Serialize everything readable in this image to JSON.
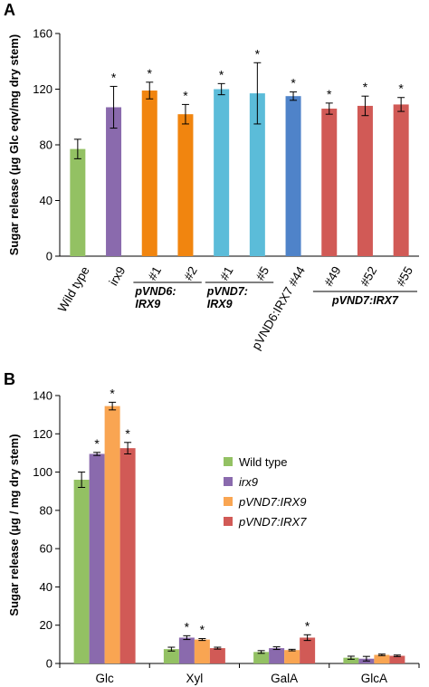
{
  "chart_data": [
    {
      "panel": "A",
      "type": "bar",
      "ylabel": "Sugar release (µg Glc eqv/mg dry stem)",
      "ylim": [
        0,
        160
      ],
      "yticks": [
        0,
        40,
        80,
        120,
        160
      ],
      "categories": [
        "Wild type",
        "irx9",
        "#1",
        "#2",
        "#1",
        "#5",
        "pVND6:IRX7 #44",
        "#49",
        "#52",
        "#55"
      ],
      "values": [
        77,
        107,
        119,
        102,
        120,
        117,
        115,
        106,
        108,
        109
      ],
      "errors": [
        7,
        15,
        6,
        7,
        4,
        22,
        3,
        4,
        7,
        5
      ],
      "significant": [
        "",
        "*",
        "*",
        "*",
        "*",
        "*",
        "*",
        "*",
        "*",
        "*"
      ],
      "colors": [
        "#93c163",
        "#8a6aad",
        "#f1850f",
        "#f1850f",
        "#5bbcd9",
        "#5bbcd9",
        "#4f83c9",
        "#d15a56",
        "#d15a56",
        "#d15a56"
      ],
      "group_labels": [
        {
          "text": "pVND6:\nIRX9",
          "from": 2,
          "to": 3
        },
        {
          "text": "pVND7:\nIRX9",
          "from": 4,
          "to": 5
        },
        {
          "text": "pVND7:IRX7",
          "from": 7,
          "to": 9
        }
      ]
    },
    {
      "panel": "B",
      "type": "bar",
      "ylabel": "Sugar release (µg / mg dry stem)",
      "ylim": [
        0,
        140
      ],
      "yticks": [
        0,
        20,
        40,
        60,
        80,
        100,
        120,
        140
      ],
      "categories": [
        "Glc",
        "Xyl",
        "GalA",
        "GlcA"
      ],
      "series": [
        {
          "name": "Wild type",
          "color": "#93c163",
          "values": [
            96,
            7.5,
            6,
            3
          ],
          "errors": [
            4,
            1,
            0.7,
            0.8
          ],
          "significant": [
            "",
            "",
            "",
            ""
          ]
        },
        {
          "name": "irx9",
          "italic": true,
          "color": "#8a6aad",
          "values": [
            109.5,
            13.5,
            8,
            2.5
          ],
          "errors": [
            0.8,
            1,
            0.7,
            1.2
          ],
          "significant": [
            "*",
            "*",
            "",
            ""
          ]
        },
        {
          "name": "pVND7:IRX9",
          "italic": true,
          "color": "#f9a552",
          "values": [
            134.5,
            12.5,
            7,
            4.5
          ],
          "errors": [
            2,
            0.5,
            0.4,
            0.4
          ],
          "significant": [
            "*",
            "*",
            "",
            ""
          ]
        },
        {
          "name": "pVND7:IRX7",
          "italic": true,
          "color": "#d15a56",
          "values": [
            112.5,
            8,
            13.5,
            4
          ],
          "errors": [
            3,
            0.5,
            1.5,
            0.4
          ],
          "significant": [
            "*",
            "",
            "*",
            ""
          ]
        }
      ],
      "legend": "right"
    }
  ]
}
